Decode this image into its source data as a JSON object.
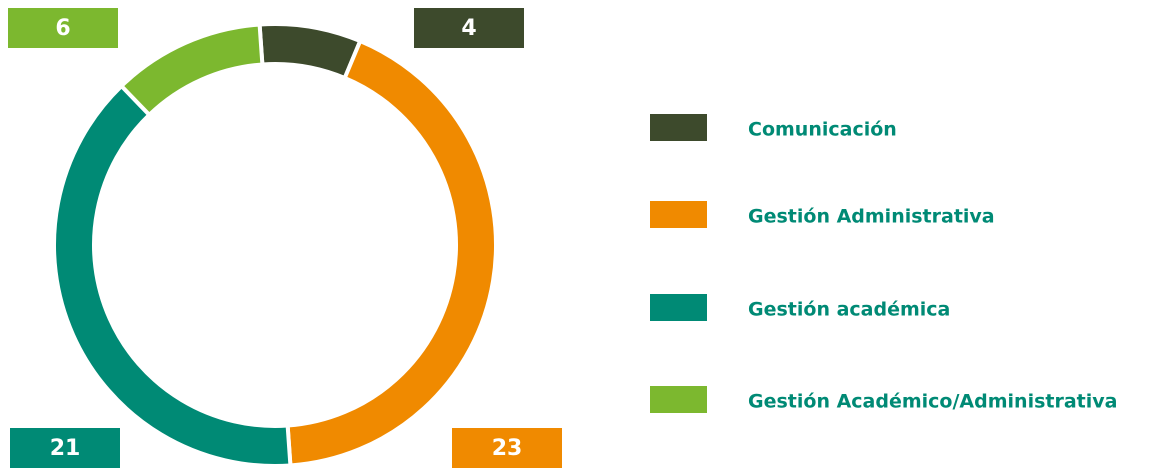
{
  "chart_data": {
    "type": "donut",
    "categories": [
      "Comunicación",
      "Gestión Administrativa",
      "Gestión académica",
      "Gestión Académico/Administrativa"
    ],
    "values": [
      4,
      23,
      21,
      6
    ],
    "colors": [
      "#3d4a2c",
      "#f08a00",
      "#008a75",
      "#7cb82f"
    ]
  }
}
